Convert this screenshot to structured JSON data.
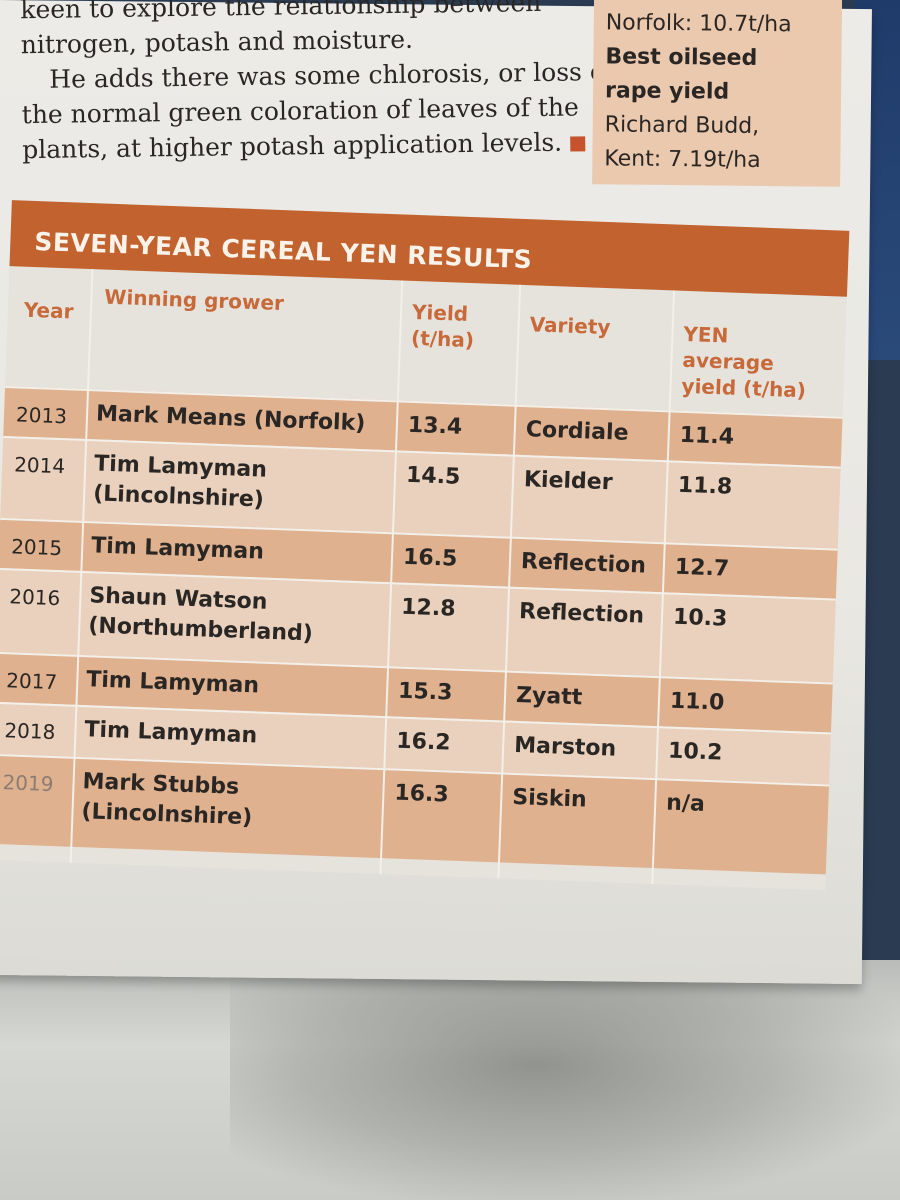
{
  "article": {
    "lines": [
      "keen to explore the relationship between",
      "nitrogen, potash and moisture.",
      "He adds there was some chlorosis, or loss of",
      "the normal green coloration of leaves of the",
      "plants, at higher potash application levels."
    ]
  },
  "sidebar": {
    "line1": "Norfolk: 10.7t/ha",
    "heading_line1": "Best oilseed",
    "heading_line2": "rape yield",
    "winner": "Richard Budd,",
    "winner_detail": "Kent: 7.19t/ha"
  },
  "table": {
    "title": "SEVEN-YEAR CEREAL YEN RESULTS",
    "headers": {
      "year": "Year",
      "grower": "Winning grower",
      "yield_line1": "Yield",
      "yield_line2": "(t/ha)",
      "variety": "Variety",
      "yen_line1": "YEN",
      "yen_line2": "average",
      "yen_line3": "yield (t/ha)"
    },
    "rows": [
      {
        "year": "2013",
        "grower_line1": "Mark Means (Norfolk)",
        "grower_line2": "",
        "yield": "13.4",
        "variety": "Cordiale",
        "yen": "11.4"
      },
      {
        "year": "2014",
        "grower_line1": "Tim Lamyman",
        "grower_line2": "(Lincolnshire)",
        "yield": "14.5",
        "variety": "Kielder",
        "yen": "11.8"
      },
      {
        "year": "2015",
        "grower_line1": "Tim Lamyman",
        "grower_line2": "",
        "yield": "16.5",
        "variety": "Reflection",
        "yen": "12.7"
      },
      {
        "year": "2016",
        "grower_line1": "Shaun Watson",
        "grower_line2": "(Northumberland)",
        "yield": "12.8",
        "variety": "Reflection",
        "yen": "10.3"
      },
      {
        "year": "2017",
        "grower_line1": "Tim Lamyman",
        "grower_line2": "",
        "yield": "15.3",
        "variety": "Zyatt",
        "yen": "11.0"
      },
      {
        "year": "2018",
        "grower_line1": "Tim Lamyman",
        "grower_line2": "",
        "yield": "16.2",
        "variety": "Marston",
        "yen": "10.2"
      },
      {
        "year": "2019",
        "grower_line1": "Mark Stubbs",
        "grower_line2": "(Lincolnshire)",
        "yield": "16.3",
        "variety": "Siskin",
        "yen": "n/a"
      }
    ]
  }
}
